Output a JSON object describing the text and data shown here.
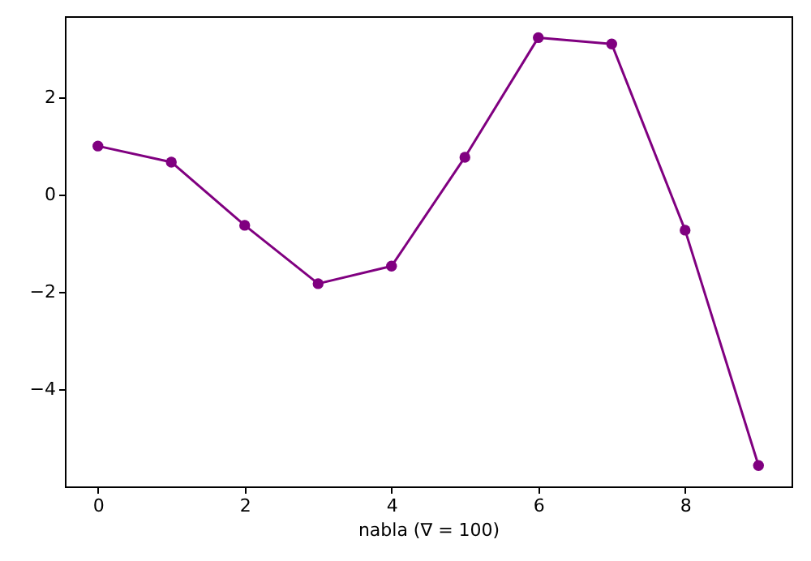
{
  "chart_data": {
    "type": "line",
    "xlabel": "nabla (∇ = 100)",
    "x": [
      0,
      1,
      2,
      3,
      4,
      5,
      6,
      7,
      8,
      9
    ],
    "series": [
      {
        "color": "#800080",
        "values": [
          1.0,
          0.67,
          -0.63,
          -1.83,
          -1.47,
          0.77,
          3.23,
          3.1,
          -0.73,
          -5.57
        ]
      }
    ],
    "xlim": [
      -0.45,
      9.45
    ],
    "xticks": [
      0,
      2,
      4,
      6,
      8
    ],
    "ylim": [
      -6.0,
      3.67
    ],
    "yticks": [
      -4,
      -2,
      0,
      2
    ],
    "grid": false,
    "marker": "circle",
    "line_style": "solid"
  }
}
